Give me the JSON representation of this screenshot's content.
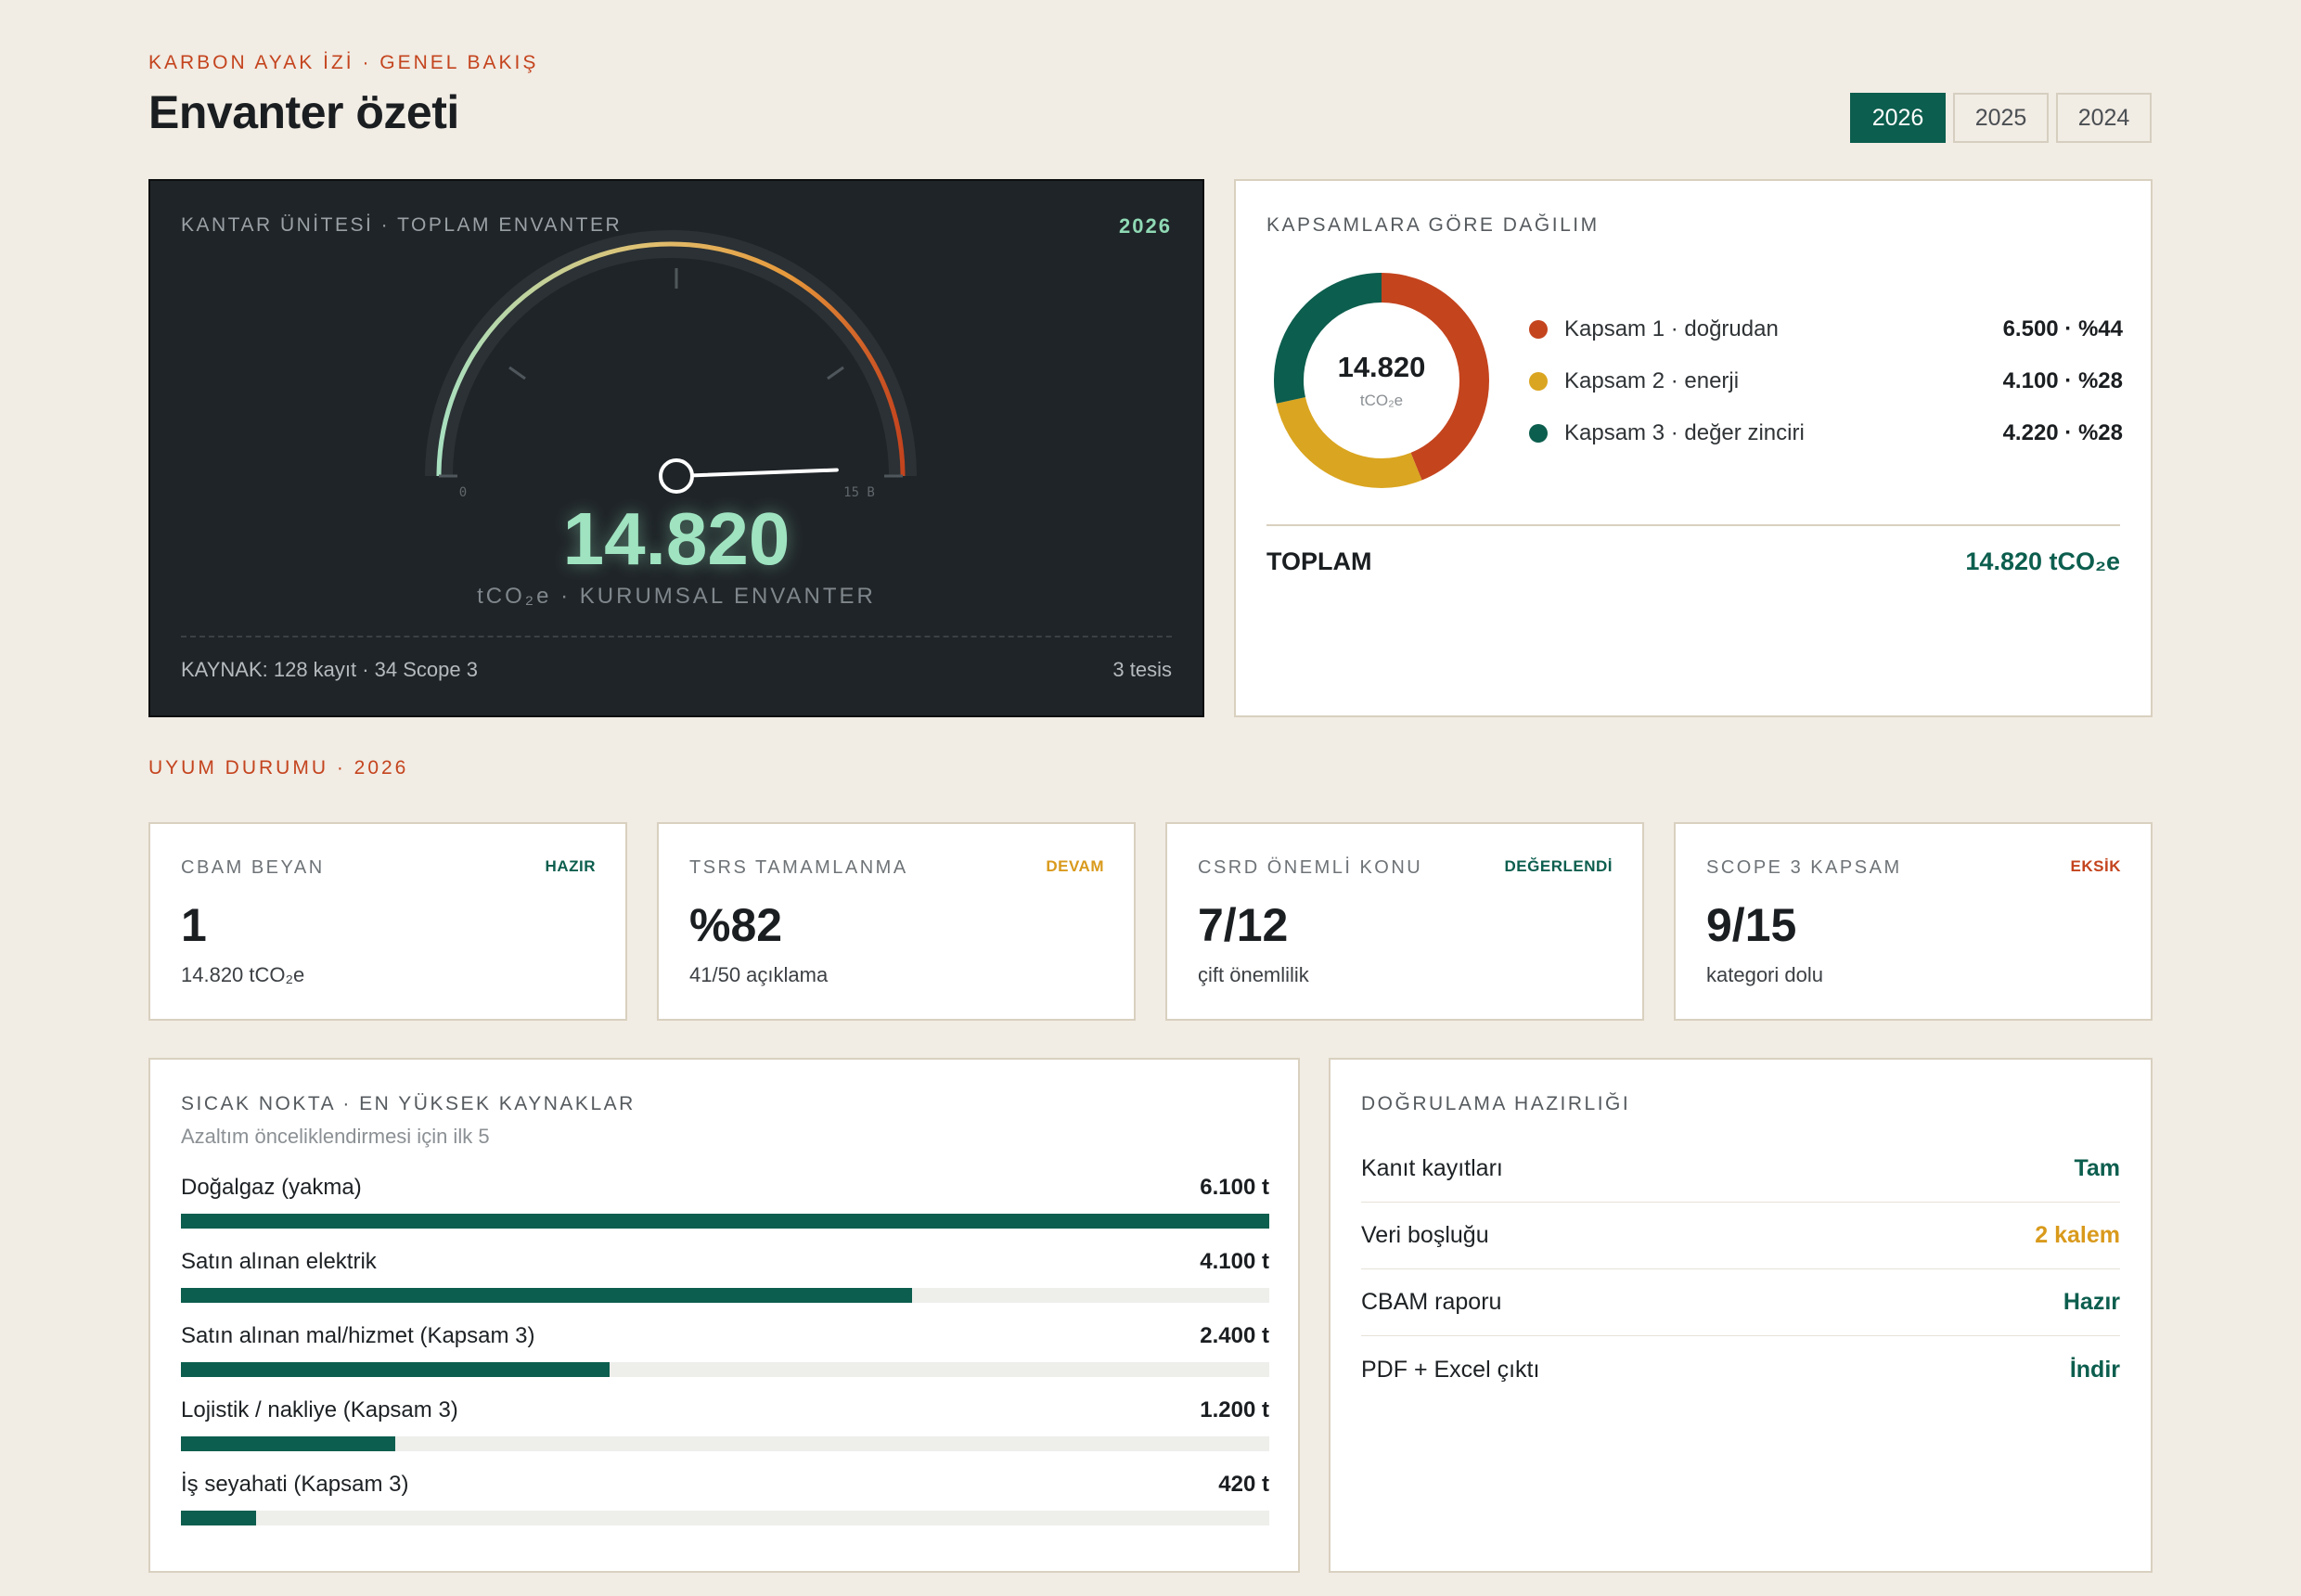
{
  "header": {
    "eyebrow": "KARBON AYAK İZİ · GENEL BAKIŞ",
    "title": "Envanter özeti",
    "years": [
      "2026",
      "2025",
      "2024"
    ],
    "active_year": "2026"
  },
  "gauge": {
    "label": "KANTAR ÜNİTESİ · TOPLAM ENVANTER",
    "year": "2026",
    "min_label": "0",
    "max_label": "15 B",
    "min": 0,
    "max": 15000,
    "value": 14820,
    "value_text": "14.820",
    "unit": "tCO₂e · KURUMSAL ENVANTER",
    "source": "KAYNAK: 128 kayıt · 34 Scope 3",
    "sites": "3 tesis"
  },
  "scopes": {
    "label": "KAPSAMLARA GÖRE DAĞILIM",
    "center_value": "14.820",
    "center_unit": "tCO₂e",
    "items": [
      {
        "label": "Kapsam 1 · doğrudan",
        "value_text": "6.500 · %44",
        "value": 6500,
        "color": "#c4441e"
      },
      {
        "label": "Kapsam 2 · enerji",
        "value_text": "4.100 · %28",
        "value": 4100,
        "color": "#daa520"
      },
      {
        "label": "Kapsam 3 · değer zinciri",
        "value_text": "4.220 · %28",
        "value": 4220,
        "color": "#0c5e4e"
      }
    ],
    "total_label": "TOPLAM",
    "total_value": "14.820 tCO₂e"
  },
  "compliance": {
    "section_label": "UYUM DURUMU · 2026",
    "cards": [
      {
        "label": "CBAM BEYAN",
        "badge": "HAZIR",
        "badge_color": "#0c5e4e",
        "value": "1",
        "sub": "14.820 tCO₂e"
      },
      {
        "label": "TSRS TAMAMLANMA",
        "badge": "DEVAM",
        "badge_color": "#d99a1c",
        "value": "%82",
        "sub": "41/50 açıklama"
      },
      {
        "label": "CSRD ÖNEMLİ KONU",
        "badge": "DEĞERLENDİ",
        "badge_color": "#0c5e4e",
        "value": "7/12",
        "sub": "çift önemlilik"
      },
      {
        "label": "SCOPE 3 KAPSAM",
        "badge": "EKSİK",
        "badge_color": "#c4441e",
        "value": "9/15",
        "sub": "kategori dolu"
      }
    ]
  },
  "hotspots": {
    "label": "SICAK NOKTA · EN YÜKSEK KAYNAKLAR",
    "sub": "Azaltım önceliklendirmesi için ilk 5",
    "max": 6100,
    "items": [
      {
        "label": "Doğalgaz (yakma)",
        "value_text": "6.100 t",
        "value": 6100
      },
      {
        "label": "Satın alınan elektrik",
        "value_text": "4.100 t",
        "value": 4100
      },
      {
        "label": "Satın alınan mal/hizmet (Kapsam 3)",
        "value_text": "2.400 t",
        "value": 2400
      },
      {
        "label": "Lojistik / nakliye (Kapsam 3)",
        "value_text": "1.200 t",
        "value": 1200
      },
      {
        "label": "İş seyahati (Kapsam 3)",
        "value_text": "420 t",
        "value": 420
      }
    ]
  },
  "verification": {
    "label": "DOĞRULAMA HAZIRLIĞI",
    "items": [
      {
        "label": "Kanıt kayıtları",
        "status": "Tam",
        "color": "#0c5e4e"
      },
      {
        "label": "Veri boşluğu",
        "status": "2 kalem",
        "color": "#d99a1c"
      },
      {
        "label": "CBAM raporu",
        "status": "Hazır",
        "color": "#0c5e4e"
      },
      {
        "label": "PDF + Excel çıktı",
        "status": "İndir",
        "color": "#0c5e4e"
      }
    ]
  }
}
